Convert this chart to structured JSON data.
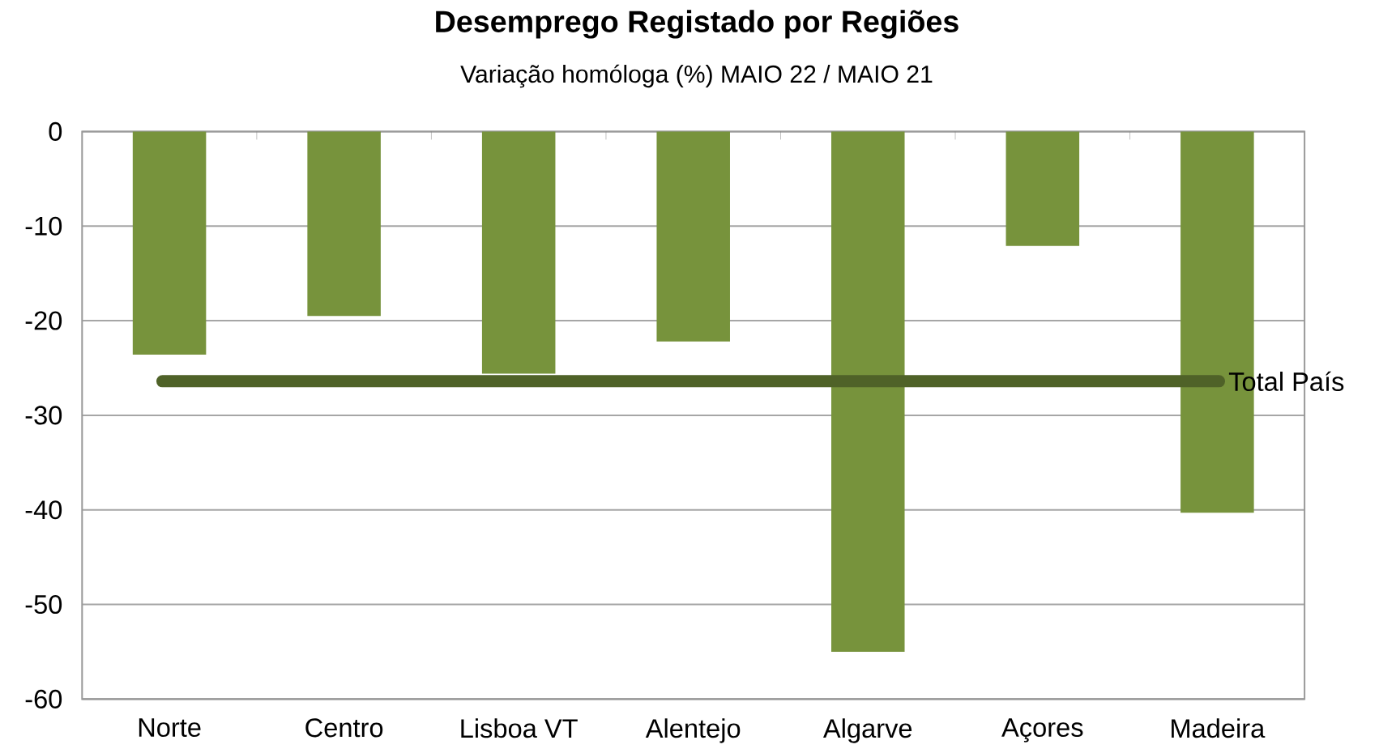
{
  "chart_data": {
    "type": "bar",
    "title": "Desemprego Registado por Regiões",
    "subtitle": "Variação homóloga (%) MAIO 22 / MAIO 21",
    "categories": [
      "Norte",
      "Centro",
      "Lisboa VT",
      "Alentejo",
      "Algarve",
      "Açores",
      "Madeira"
    ],
    "values": [
      -23.6,
      -19.5,
      -25.6,
      -22.2,
      -55,
      -12.1,
      -40.3
    ],
    "color": "#77933c",
    "ylim": [
      -60,
      0
    ],
    "yticks": [
      -60,
      -50,
      -40,
      -30,
      -20,
      -10,
      0
    ],
    "grid": "y",
    "ref_lines": [
      {
        "axis": "y",
        "value": -26.4,
        "label": "Total País",
        "color": "#4f6228"
      }
    ]
  }
}
